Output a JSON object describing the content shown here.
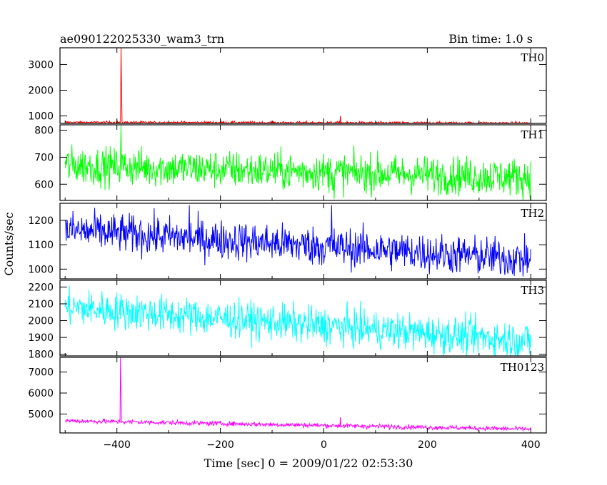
{
  "chart_data": {
    "type": "line",
    "title": "ae090122025330_wam3_trn",
    "subtitle": "Bin time: 1.0 s",
    "xlabel": "Time [sec] 0 = 2009/01/22 02:53:30",
    "ylabel": "Counts/sec",
    "xlim": [
      -510,
      430
    ],
    "xticks": [
      -400,
      -200,
      0,
      200,
      400
    ],
    "panels": [
      {
        "name": "TH0",
        "color": "#ff0000",
        "ylim": [
          710,
          3650
        ],
        "yticks": [
          1000,
          2000,
          3000
        ],
        "trend": [
          {
            "x": -500,
            "y": 750
          },
          {
            "x": 400,
            "y": 720
          }
        ],
        "noise": 25,
        "spikes": [
          {
            "x": -392,
            "y": 3650
          },
          {
            "x": -391,
            "y": 2050
          },
          {
            "x": 32,
            "y": 1000
          }
        ]
      },
      {
        "name": "TH1",
        "color": "#00ff00",
        "ylim": [
          540,
          820
        ],
        "yticks": [
          600,
          700,
          800
        ],
        "trend": [
          {
            "x": -500,
            "y": 670
          },
          {
            "x": 400,
            "y": 625
          }
        ],
        "noise": 35,
        "spikes": [
          {
            "x": -392,
            "y": 820
          },
          {
            "x": 20,
            "y": 545
          }
        ]
      },
      {
        "name": "TH2",
        "color": "#0000ff",
        "ylim": [
          960,
          1270
        ],
        "yticks": [
          1000,
          1100,
          1200
        ],
        "trend": [
          {
            "x": -500,
            "y": 1160
          },
          {
            "x": 400,
            "y": 1040
          }
        ],
        "noise": 40,
        "spikes": [
          {
            "x": -260,
            "y": 1262
          },
          {
            "x": 15,
            "y": 1262
          }
        ]
      },
      {
        "name": "TH3",
        "color": "#00ffff",
        "ylim": [
          1790,
          2240
        ],
        "yticks": [
          1800,
          1900,
          2000,
          2100,
          2200
        ],
        "trend": [
          {
            "x": -500,
            "y": 2080
          },
          {
            "x": 400,
            "y": 1880
          }
        ],
        "noise": 55,
        "spikes": []
      },
      {
        "name": "TH0123",
        "color": "#ff00ff",
        "ylim": [
          4100,
          7700
        ],
        "yticks": [
          5000,
          6000,
          7000
        ],
        "trend": [
          {
            "x": -500,
            "y": 4680
          },
          {
            "x": 400,
            "y": 4280
          }
        ],
        "noise": 55,
        "spikes": [
          {
            "x": -393,
            "y": 7700
          },
          {
            "x": -392,
            "y": 6050
          },
          {
            "x": 32,
            "y": 4850
          }
        ]
      }
    ],
    "sampling": {
      "x_start": -500,
      "x_end": 400,
      "bin": 1.0
    }
  }
}
